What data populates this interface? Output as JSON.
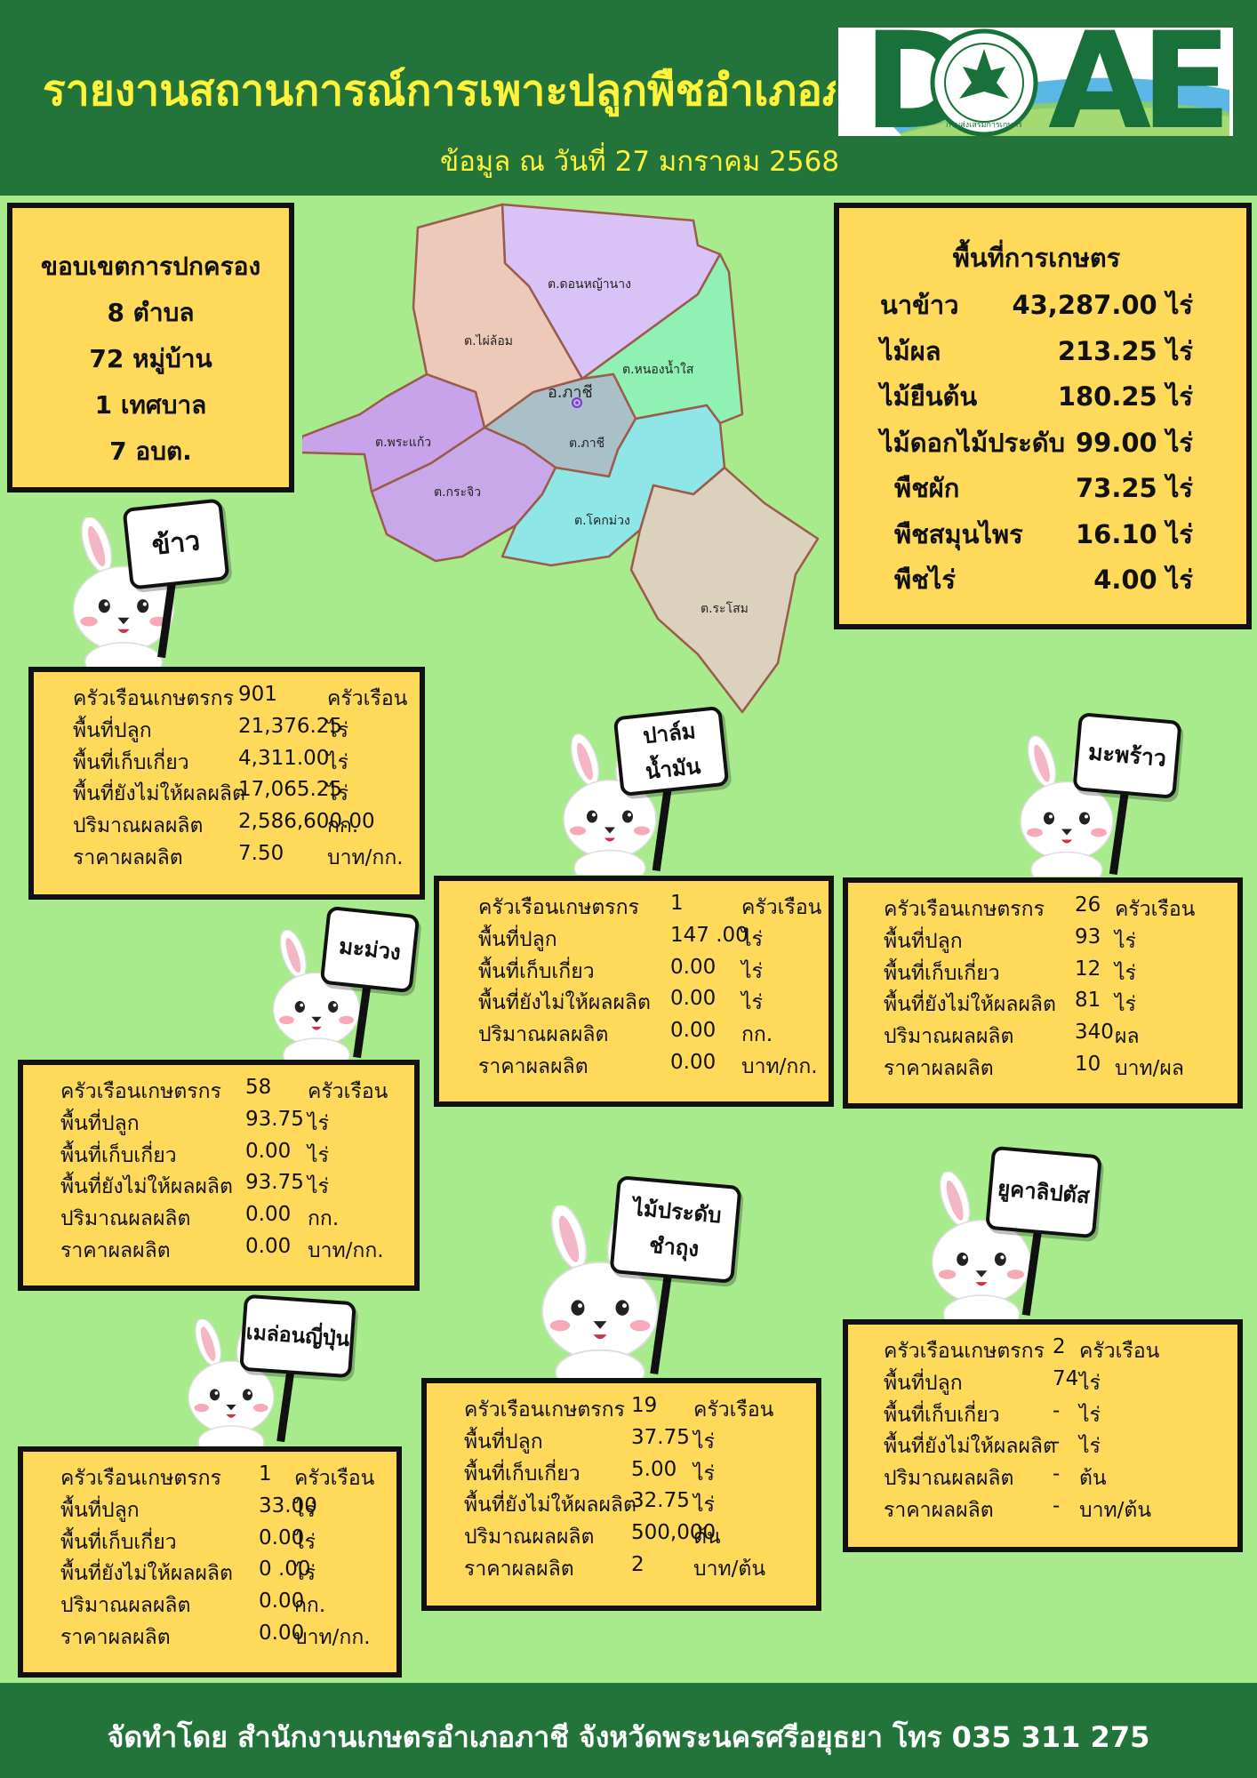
{
  "header": {
    "title": "รายงานสถานการณ์การเพาะปลูกพืชอำเภอภาชี",
    "date": "ข้อมูล ณ วันที่ 27 มกราคม 2568",
    "logo_letters": [
      "D",
      "A",
      "E"
    ],
    "logo_seal_text": "กรมส่งเสริมการเกษตร"
  },
  "admin": {
    "heading": "ขอบเขตการปกครอง",
    "lines": [
      "8 ตำบล",
      "72 หมู่บ้าน",
      "1 เทศบาล",
      "7 อบต."
    ]
  },
  "map": {
    "center_label": "อ.ภาชี",
    "regions": [
      "ต.ดอนหญ้านาง",
      "ต.ไผ่ล้อม",
      "ต.หนองน้ำใส",
      "ต.พระแก้ว",
      "ต.ภาชี",
      "ต.กระจิว",
      "ต.โคกม่วง",
      "ต.ระโสม"
    ]
  },
  "farm_area": {
    "heading": "พื้นที่การเกษตร",
    "rows": [
      {
        "name": "นาข้าว",
        "value": "43,287.00 ไร่"
      },
      {
        "name": "ไม้ผล",
        "value": "213.25 ไร่"
      },
      {
        "name": "ไม้ยืนต้น",
        "value": "180.25 ไร่"
      },
      {
        "name": "ไม้ดอกไม้ประดับ",
        "value": "99.00 ไร่"
      },
      {
        "name": "พืชผัก",
        "value": "73.25 ไร่"
      },
      {
        "name": "พืชสมุนไพร",
        "value": "16.10 ไร่"
      },
      {
        "name": "พืชไร่",
        "value": "4.00 ไร่"
      }
    ]
  },
  "crops": {
    "rice": {
      "sign": "ข้าว",
      "rows": [
        {
          "label": "ครัวเรือนเกษตรกร",
          "value": "901",
          "unit": "ครัวเรือน"
        },
        {
          "label": "พื้นที่ปลูก",
          "value": "21,376.25",
          "unit": "ไร่"
        },
        {
          "label": "พื้นที่เก็บเกี่ยว",
          "value": "4,311.00",
          "unit": "ไร่"
        },
        {
          "label": "พื้นที่ยังไม่ให้ผลผลิต",
          "value": "17,065.25",
          "unit": "ไร่"
        },
        {
          "label": "ปริมาณผลผลิต",
          "value": "2,586,600.00",
          "unit": "กก."
        },
        {
          "label": "ราคาผลผลิต",
          "value": "7.50",
          "unit": "บาท/กก."
        }
      ]
    },
    "palm": {
      "sign": "ปาล์มน้ำมัน",
      "rows": [
        {
          "label": "ครัวเรือนเกษตรกร",
          "value": "1",
          "unit": "ครัวเรือน"
        },
        {
          "label": "พื้นที่ปลูก",
          "value": "147 .00",
          "unit": "ไร่"
        },
        {
          "label": "พื้นที่เก็บเกี่ยว",
          "value": "0.00",
          "unit": "ไร่"
        },
        {
          "label": "พื้นที่ยังไม่ให้ผลผลิต",
          "value": "0.00",
          "unit": "ไร่"
        },
        {
          "label": "ปริมาณผลผลิต",
          "value": "0.00",
          "unit": "กก."
        },
        {
          "label": "ราคาผลผลิต",
          "value": "0.00",
          "unit": "บาท/กก."
        }
      ]
    },
    "coconut": {
      "sign": "มะพร้าว",
      "rows": [
        {
          "label": "ครัวเรือนเกษตรกร",
          "value": "26",
          "unit": "ครัวเรือน"
        },
        {
          "label": "พื้นที่ปลูก",
          "value": "93",
          "unit": "ไร่"
        },
        {
          "label": "พื้นที่เก็บเกี่ยว",
          "value": "12",
          "unit": "ไร่"
        },
        {
          "label": "พื้นที่ยังไม่ให้ผลผลิต",
          "value": "81",
          "unit": "ไร่"
        },
        {
          "label": "ปริมาณผลผลิต",
          "value": "340",
          "unit": "ผล"
        },
        {
          "label": "ราคาผลผลิต",
          "value": "10",
          "unit": "บาท/ผล"
        }
      ]
    },
    "mango": {
      "sign": "มะม่วง",
      "rows": [
        {
          "label": "ครัวเรือนเกษตรกร",
          "value": "58",
          "unit": "ครัวเรือน"
        },
        {
          "label": "พื้นที่ปลูก",
          "value": "93.75",
          "unit": "ไร่"
        },
        {
          "label": "พื้นที่เก็บเกี่ยว",
          "value": "0.00",
          "unit": "ไร่"
        },
        {
          "label": "พื้นที่ยังไม่ให้ผลผลิต",
          "value": "93.75",
          "unit": "ไร่"
        },
        {
          "label": "ปริมาณผลผลิต",
          "value": "0.00",
          "unit": "กก."
        },
        {
          "label": "ราคาผลผลิต",
          "value": "0.00",
          "unit": "บาท/กก."
        }
      ]
    },
    "ornamental": {
      "sign_lines": [
        "ไม้ประดับ",
        "ชำถุง"
      ],
      "rows": [
        {
          "label": "ครัวเรือนเกษตรกร",
          "value": "19",
          "unit": "ครัวเรือน"
        },
        {
          "label": "พื้นที่ปลูก",
          "value": "37.75",
          "unit": "ไร่"
        },
        {
          "label": "พื้นที่เก็บเกี่ยว",
          "value": "5.00",
          "unit": "ไร่"
        },
        {
          "label": "พื้นที่ยังไม่ให้ผลผลิต",
          "value": "32.75",
          "unit": "ไร่"
        },
        {
          "label": "ปริมาณผลผลิต",
          "value": "500,000",
          "unit": "ต้น"
        },
        {
          "label": "ราคาผลผลิต",
          "value": "2",
          "unit": "บาท/ต้น"
        }
      ]
    },
    "eucalyptus": {
      "sign": "ยูคาลิปตัส",
      "rows": [
        {
          "label": "ครัวเรือนเกษตรกร",
          "value": "2",
          "unit": "ครัวเรือน"
        },
        {
          "label": "พื้นที่ปลูก",
          "value": "74",
          "unit": "ไร่"
        },
        {
          "label": "พื้นที่เก็บเกี่ยว",
          "value": "-",
          "unit": "ไร่"
        },
        {
          "label": "พื้นที่ยังไม่ให้ผลผลิต",
          "value": "-",
          "unit": "ไร่"
        },
        {
          "label": "ปริมาณผลผลิต",
          "value": "-",
          "unit": "ต้น"
        },
        {
          "label": "ราคาผลผลิต",
          "value": "-",
          "unit": "บาท/ต้น"
        }
      ]
    },
    "melon": {
      "sign": "เมล่อนญี่ปุ่น",
      "rows": [
        {
          "label": "ครัวเรือนเกษตรกร",
          "value": "1",
          "unit": "ครัวเรือน"
        },
        {
          "label": "พื้นที่ปลูก",
          "value": "33.00",
          "unit": "ไร่"
        },
        {
          "label": "พื้นที่เก็บเกี่ยว",
          "value": "0.00",
          "unit": "ไร่"
        },
        {
          "label": "พื้นที่ยังไม่ให้ผลผลิต",
          "value": "0 .00",
          "unit": "ไร่"
        },
        {
          "label": "ปริมาณผลผลิต",
          "value": "0.00",
          "unit": "กก."
        },
        {
          "label": "ราคาผลผลิต",
          "value": "0.00",
          "unit": "บาท/กก."
        }
      ]
    }
  },
  "footer": {
    "text": "จัดทำโดย สำนักงานเกษตรอำเภอภาชี จังหวัดพระนครศรีอยุธยา โทร 035 311 275"
  }
}
